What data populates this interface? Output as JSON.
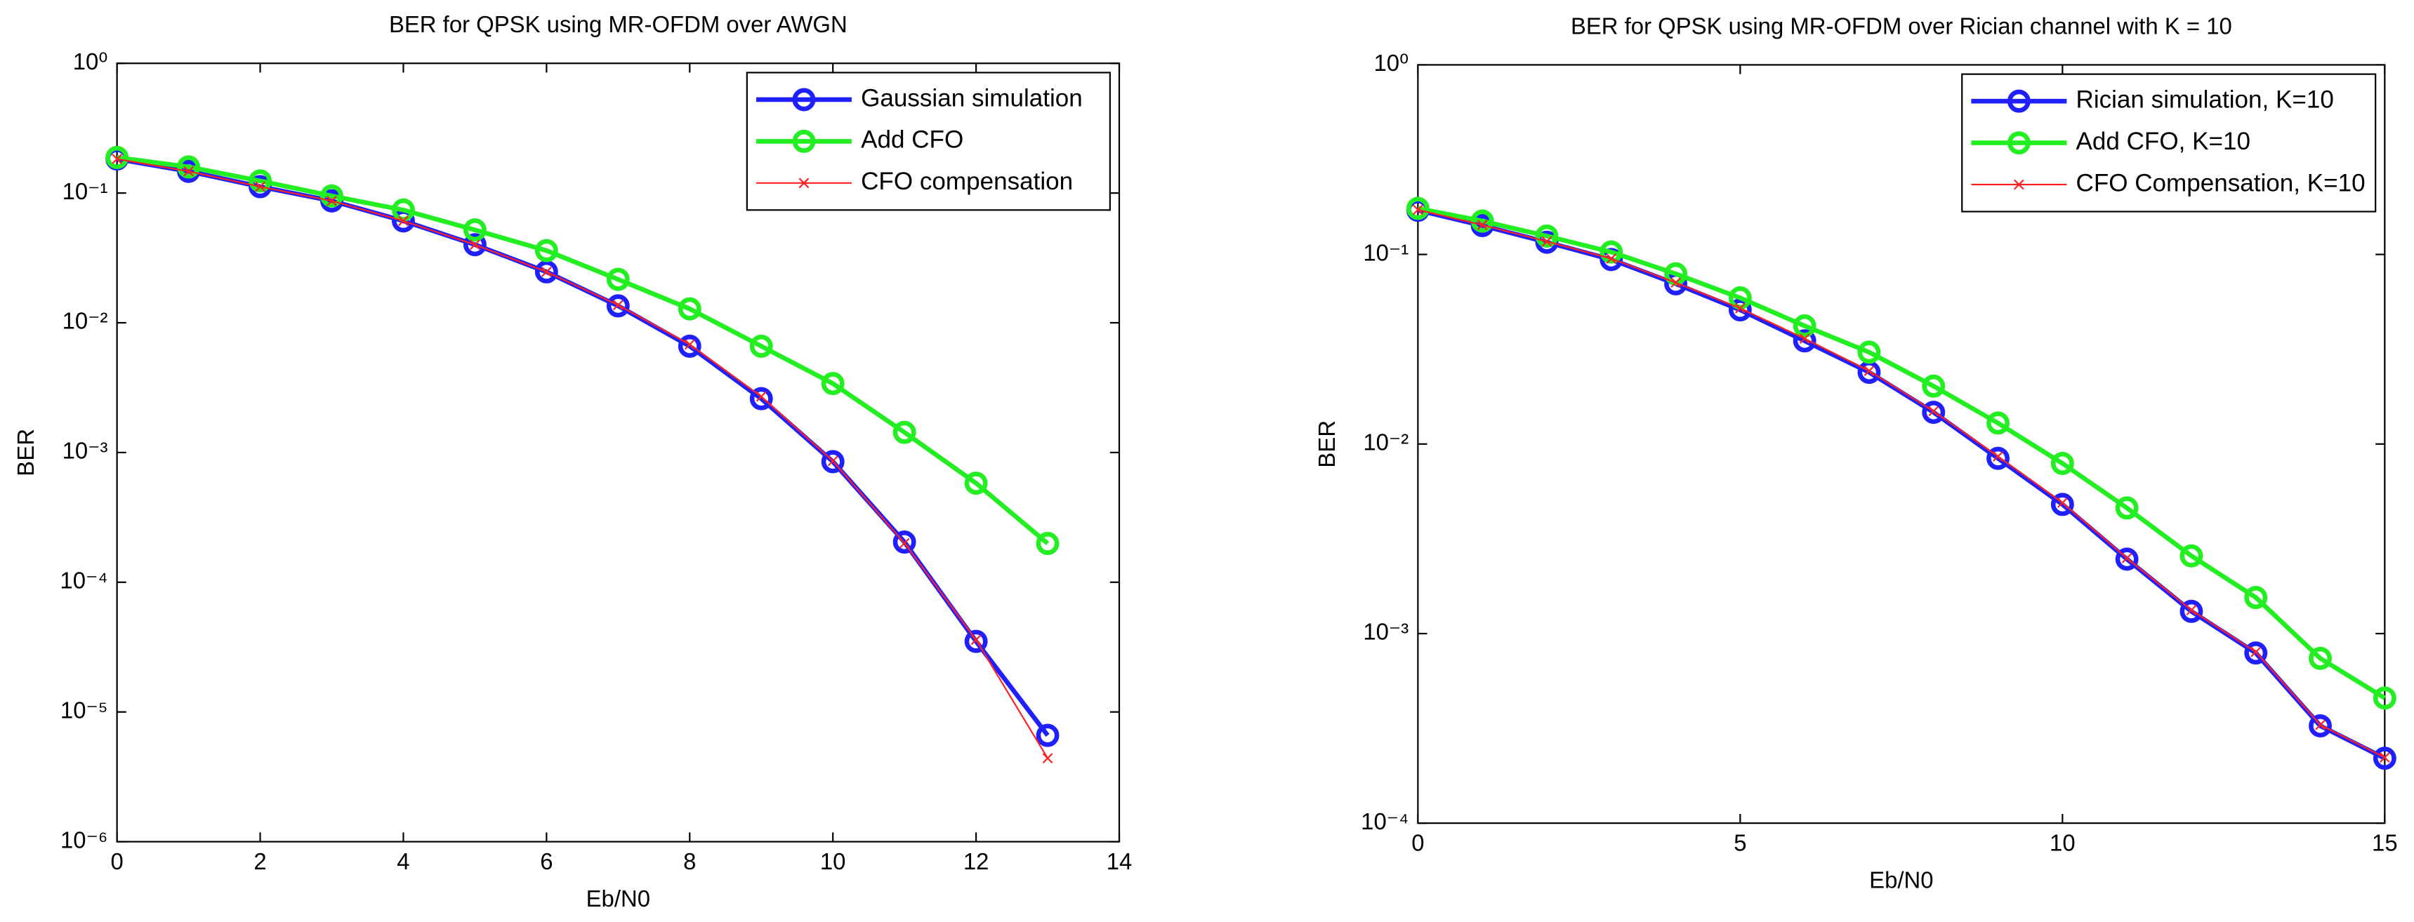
{
  "chart_data": [
    {
      "type": "line",
      "title": "BER for QPSK using MR-OFDM over AWGN",
      "xlabel": "Eb/N0",
      "ylabel": "BER",
      "yscale": "log",
      "legend": "upper right",
      "grid": false,
      "xlim": [
        0,
        14
      ],
      "xticks": [
        0,
        2,
        4,
        6,
        8,
        10,
        12,
        14
      ],
      "ylim": [
        1e-06,
        1
      ],
      "yticks": [
        {
          "value": 1e-06,
          "label": "10⁻⁶"
        },
        {
          "value": 1e-05,
          "label": "10⁻⁵"
        },
        {
          "value": 0.0001,
          "label": "10⁻⁴"
        },
        {
          "value": 0.001,
          "label": "10⁻³"
        },
        {
          "value": 0.01,
          "label": "10⁻²"
        },
        {
          "value": 0.1,
          "label": "10⁻¹"
        },
        {
          "value": 1,
          "label": "10⁰"
        }
      ],
      "x": [
        0,
        1,
        2,
        3,
        4,
        5,
        6,
        7,
        8,
        9,
        10,
        11,
        12,
        13
      ],
      "series": [
        {
          "name": "Gaussian simulation",
          "color": "#2020ff",
          "marker": "o",
          "linewidth": 3,
          "values": [
            0.183,
            0.147,
            0.112,
            0.087,
            0.061,
            0.04,
            0.0247,
            0.0135,
            0.0066,
            0.0026,
            0.00085,
            0.000204,
            3.5e-05,
            6.6e-06
          ]
        },
        {
          "name": "Add CFO",
          "color": "#22ee22",
          "marker": "o",
          "linewidth": 3,
          "values": [
            0.188,
            0.159,
            0.124,
            0.095,
            0.074,
            0.052,
            0.036,
            0.0216,
            0.0128,
            0.0066,
            0.0034,
            0.00143,
            0.00058,
            0.000199
          ]
        },
        {
          "name": "CFO compensation",
          "color": "#ff2020",
          "marker": "x",
          "linewidth": 1,
          "values": [
            0.183,
            0.147,
            0.112,
            0.087,
            0.061,
            0.04,
            0.0247,
            0.0137,
            0.0068,
            0.0027,
            0.00086,
            0.0002,
            3.6e-05,
            4.4e-06
          ]
        }
      ]
    },
    {
      "type": "line",
      "title": "BER for QPSK using MR-OFDM over Rician channel with K = 10",
      "xlabel": "Eb/N0",
      "ylabel": "BER",
      "yscale": "log",
      "legend": "upper right",
      "grid": false,
      "xlim": [
        0,
        15
      ],
      "xticks": [
        0,
        5,
        10,
        15
      ],
      "ylim": [
        0.0001,
        1
      ],
      "yticks": [
        {
          "value": 0.0001,
          "label": "10⁻⁴"
        },
        {
          "value": 0.001,
          "label": "10⁻³"
        },
        {
          "value": 0.01,
          "label": "10⁻²"
        },
        {
          "value": 0.1,
          "label": "10⁻¹"
        },
        {
          "value": 1,
          "label": "10⁰"
        }
      ],
      "x": [
        0,
        1,
        2,
        3,
        4,
        5,
        6,
        7,
        8,
        9,
        10,
        11,
        12,
        13,
        14,
        15
      ],
      "series": [
        {
          "name": "Rician simulation, K=10",
          "color": "#2020ff",
          "marker": "o",
          "linewidth": 3,
          "values": [
            0.171,
            0.142,
            0.116,
            0.094,
            0.07,
            0.051,
            0.035,
            0.0239,
            0.0147,
            0.0084,
            0.0048,
            0.00247,
            0.00131,
            0.00079,
            0.000326,
            0.00022
          ]
        },
        {
          "name": "Add CFO, K=10",
          "color": "#22ee22",
          "marker": "o",
          "linewidth": 3,
          "values": [
            0.175,
            0.15,
            0.125,
            0.103,
            0.079,
            0.059,
            0.042,
            0.0305,
            0.0202,
            0.0129,
            0.0079,
            0.0046,
            0.00257,
            0.00155,
            0.00074,
            0.000457
          ]
        },
        {
          "name": "CFO Compensation, K=10",
          "color": "#ff2020",
          "marker": "x",
          "linewidth": 1,
          "values": [
            0.172,
            0.143,
            0.117,
            0.095,
            0.071,
            0.052,
            0.036,
            0.0243,
            0.0149,
            0.0086,
            0.0049,
            0.0025,
            0.00133,
            0.0008,
            0.00033,
            0.000222
          ]
        }
      ]
    }
  ]
}
